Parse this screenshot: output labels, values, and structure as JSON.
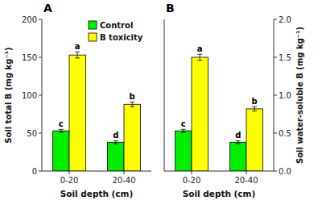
{
  "chart_data": [
    {
      "type": "bar",
      "title": "A",
      "categories": [
        "0-20",
        "20-40"
      ],
      "xlabel": "Soil depth (cm)",
      "ylabel": "Soil total B (mg kg⁻¹)",
      "ylim": [
        0,
        200
      ],
      "yticks": [
        0,
        50,
        100,
        150,
        200
      ],
      "legend": "upper right",
      "series": [
        {
          "name": "Control",
          "color": "#00ee00",
          "values": [
            53,
            38
          ],
          "errors": [
            2,
            2
          ],
          "annotations": [
            "c",
            "d"
          ]
        },
        {
          "name": "B toxicity",
          "color": "#ffff00",
          "values": [
            153,
            88
          ],
          "errors": [
            4,
            3
          ],
          "annotations": [
            "a",
            "b"
          ]
        }
      ]
    },
    {
      "type": "bar",
      "title": "B",
      "categories": [
        "0-20",
        "20-40"
      ],
      "xlabel": "Soil depth (cm)",
      "y2label": "Soil water-soluble B (mg kg⁻¹)",
      "y2lim": [
        0.0,
        2.0
      ],
      "y2ticks": [
        {
          "value": 0.0,
          "label": "0.0"
        },
        0.5,
        {
          "value": 1.0,
          "label": "1.0"
        },
        1.5,
        {
          "value": 2.0,
          "label": "2.0"
        }
      ],
      "series": [
        {
          "name": "Control",
          "color": "#00ee00",
          "axis": "y2",
          "values": [
            0.53,
            0.38
          ],
          "errors": [
            0.02,
            0.02
          ],
          "annotations": [
            "c",
            "d"
          ]
        },
        {
          "name": "B toxicity",
          "color": "#ffff00",
          "axis": "y2",
          "values": [
            1.5,
            0.82
          ],
          "errors": [
            0.04,
            0.03
          ],
          "annotations": [
            "a",
            "b"
          ]
        }
      ]
    }
  ]
}
